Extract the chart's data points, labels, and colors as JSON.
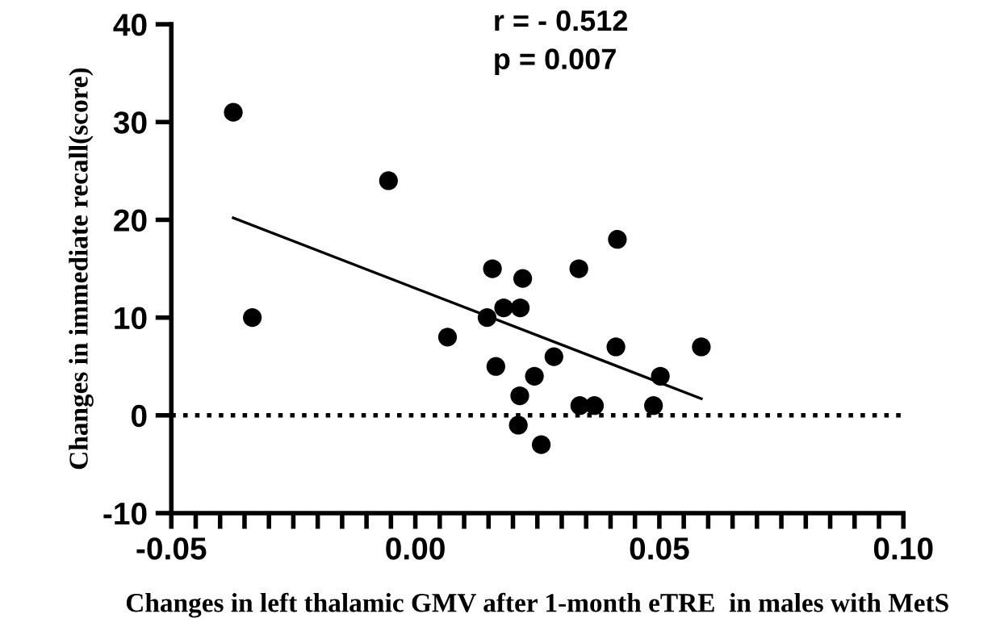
{
  "chart_data": {
    "type": "scatter",
    "xlabel": "Changes in left thalamic GMV after 1-month eTRE  in males with MetS",
    "ylabel": "Changes in immediate recall(score)",
    "annotations": [
      "r = - 0.512",
      "p = 0.007"
    ],
    "series": [
      {
        "color": "#000000",
        "marker": "circle",
        "x": [
          -0.0373,
          -0.0055,
          -0.0334,
          0.0066,
          0.0158,
          0.022,
          0.0181,
          0.0215,
          0.0147,
          0.0165,
          0.0284,
          0.0244,
          0.0214,
          0.0211,
          0.0258,
          0.0335,
          0.0414,
          0.0411,
          0.0586,
          0.0502,
          0.0337,
          0.0367,
          0.0488
        ],
        "values": [
          31,
          24,
          10,
          8,
          15,
          14,
          11,
          11,
          10,
          5,
          6,
          4,
          2,
          -1,
          -3,
          15,
          18,
          7,
          7,
          4,
          1,
          1,
          1
        ]
      },
      {
        "type": "line",
        "color": "#000000",
        "line_style": "solid",
        "x": [
          -0.0373,
          0.0586
        ],
        "values": [
          20.2,
          1.7
        ]
      }
    ],
    "ref_lines": [
      {
        "axis": "y",
        "value": 0,
        "label": null,
        "color": "#000000",
        "line_style": "dotted"
      }
    ],
    "xlim": [
      -0.05,
      0.1
    ],
    "ylim": [
      -10,
      40
    ],
    "xticks": [
      -0.05,
      {
        "value": -0.045,
        "label": null
      },
      {
        "value": -0.04,
        "label": null
      },
      {
        "value": -0.035,
        "label": null
      },
      {
        "value": -0.03,
        "label": null
      },
      {
        "value": -0.025,
        "label": null
      },
      {
        "value": -0.02,
        "label": null
      },
      {
        "value": -0.015,
        "label": null
      },
      {
        "value": -0.01,
        "label": null
      },
      {
        "value": -0.005,
        "label": null
      },
      {
        "value": 0,
        "label": "0.00"
      },
      {
        "value": 0.005,
        "label": null
      },
      {
        "value": 0.01,
        "label": null
      },
      {
        "value": 0.015,
        "label": null
      },
      {
        "value": 0.02,
        "label": null
      },
      {
        "value": 0.025,
        "label": null
      },
      {
        "value": 0.03,
        "label": null
      },
      {
        "value": 0.035,
        "label": null
      },
      {
        "value": 0.04,
        "label": null
      },
      {
        "value": 0.045,
        "label": null
      },
      0.05,
      {
        "value": 0.055,
        "label": null
      },
      {
        "value": 0.06,
        "label": null
      },
      {
        "value": 0.065,
        "label": null
      },
      {
        "value": 0.07,
        "label": null
      },
      {
        "value": 0.075,
        "label": null
      },
      {
        "value": 0.08,
        "label": null
      },
      {
        "value": 0.085,
        "label": null
      },
      {
        "value": 0.09,
        "label": null
      },
      {
        "value": 0.095,
        "label": null
      },
      {
        "value": 0.1,
        "label": "0.10"
      }
    ],
    "yticks": [
      -10,
      0,
      10,
      20,
      30,
      40
    ],
    "grid": false,
    "legend": false
  }
}
